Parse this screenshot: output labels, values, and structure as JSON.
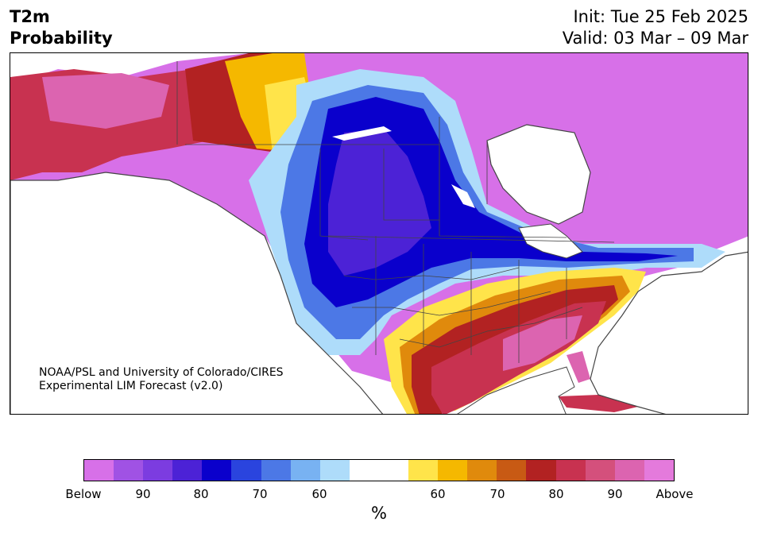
{
  "header": {
    "title_line1": "T2m",
    "title_line2": "Probability",
    "init_label": "Init: Tue 25 Feb 2025",
    "valid_label": "Valid: 03 Mar – 09 Mar"
  },
  "map": {
    "credit_line1": "NOAA/PSL and University of Colorado/CIRES",
    "credit_line2": "Experimental LIM Forecast (v2.0)"
  },
  "colorbar": {
    "unit": "%",
    "colors": [
      "#d770e8",
      "#a052e4",
      "#7c3ce0",
      "#4c22d6",
      "#0a00cc",
      "#2a44de",
      "#4c78e6",
      "#78b2f2",
      "#aedcfa",
      "#ffffff",
      "#ffffff",
      "#ffe44a",
      "#f5b800",
      "#e08a0c",
      "#c85a14",
      "#b22222",
      "#c83250",
      "#d4507c",
      "#dc64b0",
      "#e47adc"
    ],
    "tick_labels": [
      "Below",
      "90",
      "80",
      "70",
      "60",
      "60",
      "70",
      "80",
      "90",
      "Above"
    ]
  },
  "colors": {
    "land_outline": "#444444",
    "water": "#ffffff"
  }
}
